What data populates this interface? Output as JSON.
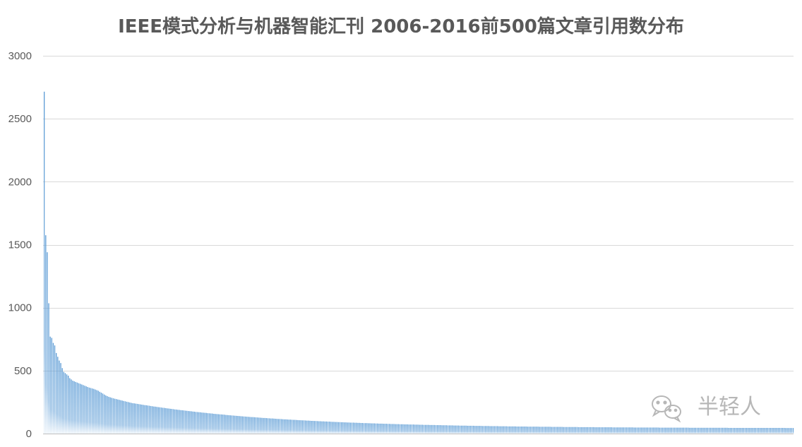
{
  "chart_data": {
    "type": "bar",
    "title": "IEEE模式分析与机器智能汇刊 2006-2016前500篇文章引用数分布",
    "xlabel": "",
    "ylabel": "",
    "ylim": [
      0,
      3000
    ],
    "yticks": [
      0,
      500,
      1000,
      1500,
      2000,
      2500,
      3000
    ],
    "grid": true,
    "legend": "none",
    "bar_count": 500,
    "colors": {
      "bar": "#5b9bd5",
      "grid": "#d9d9d9",
      "text": "#595959"
    },
    "values_head": [
      2715,
      1575,
      1440,
      1035,
      770,
      760,
      720,
      700,
      640,
      610,
      580,
      560,
      520,
      490,
      480,
      470,
      460,
      440,
      430,
      420,
      415,
      410,
      405,
      400,
      395,
      390,
      385,
      380,
      375,
      370,
      365,
      362,
      358,
      355,
      350,
      345,
      340,
      332,
      325,
      318,
      310,
      303,
      297,
      292,
      288,
      284,
      280,
      277,
      274,
      271,
      268,
      265,
      262,
      259,
      256,
      253,
      250,
      247,
      244,
      241
    ],
    "tail_curve": {
      "start": 240,
      "end": 42,
      "decay": 0.0072,
      "floor": 40
    }
  },
  "watermark": {
    "icon": "wechat-icon",
    "text": "半轻人"
  }
}
